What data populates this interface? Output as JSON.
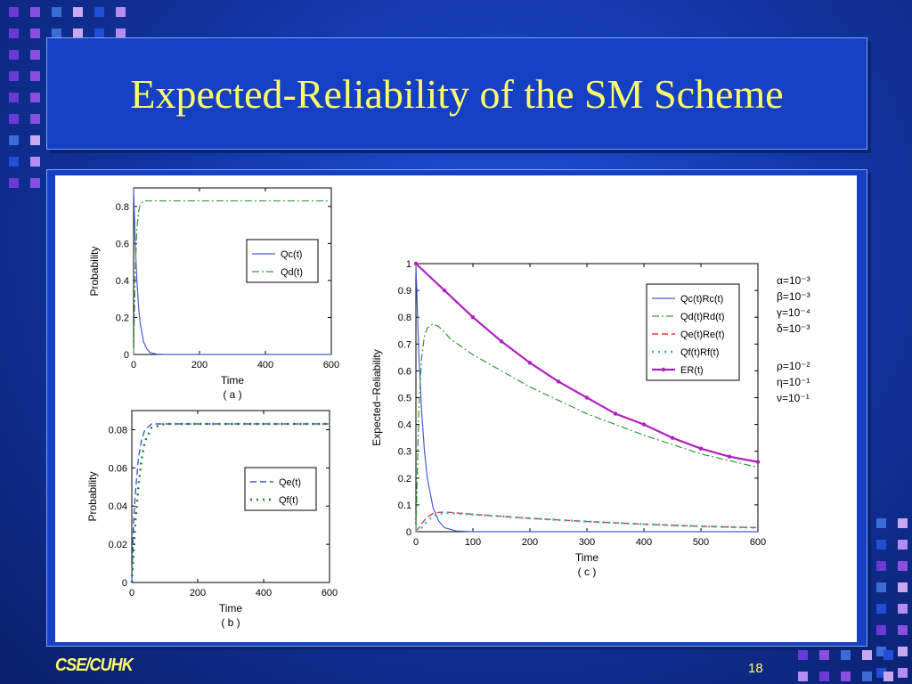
{
  "slide": {
    "title": "Expected-Reliability of the SM Scheme",
    "footer_logo": "CSE/CUHK",
    "page_number": "18"
  },
  "colors": {
    "title_text": "#ffff66",
    "Qc": "#4b5bd6",
    "Qd": "#2e9a3a",
    "Qe": "#e03a3a",
    "Qf": "#1fb8c8",
    "ER": "#b020c0",
    "Qe_plot_b": "#3a5ae0",
    "Qf_plot_b": "#1c7a2a"
  },
  "chart_data": [
    {
      "type": "line",
      "id": "a",
      "caption": "( a )",
      "xlabel": "Time",
      "ylabel": "Probability",
      "xlim": [
        0,
        600
      ],
      "ylim": [
        0,
        0.9
      ],
      "xticks": [
        "0",
        "200",
        "400",
        "600"
      ],
      "yticks": [
        "0",
        "0.2",
        "0.4",
        "0.6",
        "0.8"
      ],
      "legend_position": "right",
      "series": [
        {
          "name": "Qc(t)",
          "x": [
            0,
            5,
            10,
            15,
            20,
            30,
            40,
            50,
            70,
            100,
            600
          ],
          "y": [
            0.9,
            0.6,
            0.4,
            0.26,
            0.17,
            0.07,
            0.03,
            0.01,
            0.002,
            0,
            0
          ]
        },
        {
          "name": "Qd(t)",
          "x": [
            0,
            5,
            10,
            15,
            20,
            30,
            40,
            60,
            100,
            600
          ],
          "y": [
            0,
            0.45,
            0.68,
            0.77,
            0.81,
            0.83,
            0.83,
            0.83,
            0.83,
            0.83
          ]
        }
      ]
    },
    {
      "type": "line",
      "id": "b",
      "caption": "( b )",
      "xlabel": "Time",
      "ylabel": "Probability",
      "xlim": [
        0,
        600
      ],
      "ylim": [
        0,
        0.09
      ],
      "xticks": [
        "0",
        "200",
        "400",
        "600"
      ],
      "yticks": [
        "0",
        "0.02",
        "0.04",
        "0.06",
        "0.08"
      ],
      "legend_position": "right",
      "series": [
        {
          "name": "Qe(t)",
          "x": [
            0,
            5,
            10,
            20,
            30,
            40,
            60,
            100,
            600
          ],
          "y": [
            0,
            0.03,
            0.045,
            0.065,
            0.075,
            0.08,
            0.083,
            0.083,
            0.083
          ]
        },
        {
          "name": "Qf(t)",
          "x": [
            0,
            5,
            10,
            20,
            30,
            40,
            60,
            100,
            600
          ],
          "y": [
            0,
            0.015,
            0.03,
            0.05,
            0.065,
            0.074,
            0.081,
            0.083,
            0.083
          ]
        }
      ]
    },
    {
      "type": "line",
      "id": "c",
      "caption": "( c )",
      "xlabel": "Time",
      "ylabel": "Expected−Reliability",
      "xlim": [
        0,
        600
      ],
      "ylim": [
        0,
        1
      ],
      "xticks": [
        "0",
        "100",
        "200",
        "300",
        "400",
        "500",
        "600"
      ],
      "yticks": [
        "0",
        "0.1",
        "0.2",
        "0.3",
        "0.4",
        "0.5",
        "0.6",
        "0.7",
        "0.8",
        "0.9",
        "1"
      ],
      "legend_position": "top-right",
      "series": [
        {
          "name": "Qc(t)Rc(t)",
          "x": [
            0,
            5,
            10,
            15,
            20,
            30,
            40,
            50,
            70,
            100,
            600
          ],
          "y": [
            1.0,
            0.67,
            0.45,
            0.3,
            0.2,
            0.09,
            0.04,
            0.015,
            0.003,
            0,
            0
          ]
        },
        {
          "name": "Qd(t)Rd(t)",
          "x": [
            0,
            5,
            10,
            15,
            20,
            30,
            40,
            50,
            60,
            100,
            150,
            200,
            300,
            400,
            500,
            600
          ],
          "y": [
            0,
            0.45,
            0.65,
            0.73,
            0.76,
            0.775,
            0.765,
            0.745,
            0.72,
            0.66,
            0.6,
            0.54,
            0.44,
            0.36,
            0.29,
            0.24
          ]
        },
        {
          "name": "Qe(t)Re(t)",
          "x": [
            0,
            10,
            20,
            30,
            40,
            50,
            60,
            100,
            200,
            300,
            400,
            500,
            600
          ],
          "y": [
            0,
            0.03,
            0.055,
            0.068,
            0.072,
            0.073,
            0.072,
            0.065,
            0.05,
            0.038,
            0.028,
            0.02,
            0.015
          ]
        },
        {
          "name": "Qf(t)Rf(t)",
          "x": [
            0,
            10,
            20,
            30,
            40,
            50,
            60,
            100,
            200,
            300,
            400,
            500,
            600
          ],
          "y": [
            0,
            0.015,
            0.04,
            0.058,
            0.066,
            0.069,
            0.069,
            0.064,
            0.05,
            0.038,
            0.028,
            0.02,
            0.015
          ]
        },
        {
          "name": "ER(t)",
          "x": [
            0,
            50,
            100,
            150,
            200,
            250,
            300,
            350,
            400,
            450,
            500,
            550,
            600
          ],
          "y": [
            1.0,
            0.9,
            0.8,
            0.71,
            0.63,
            0.56,
            0.5,
            0.44,
            0.4,
            0.35,
            0.31,
            0.28,
            0.26
          ]
        }
      ],
      "annotations": [
        "α=10⁻³",
        "β=10⁻³",
        "γ=10⁻⁴",
        "δ=10⁻³",
        "ρ=10⁻²",
        "η=10⁻¹",
        "ν=10⁻¹"
      ]
    }
  ]
}
